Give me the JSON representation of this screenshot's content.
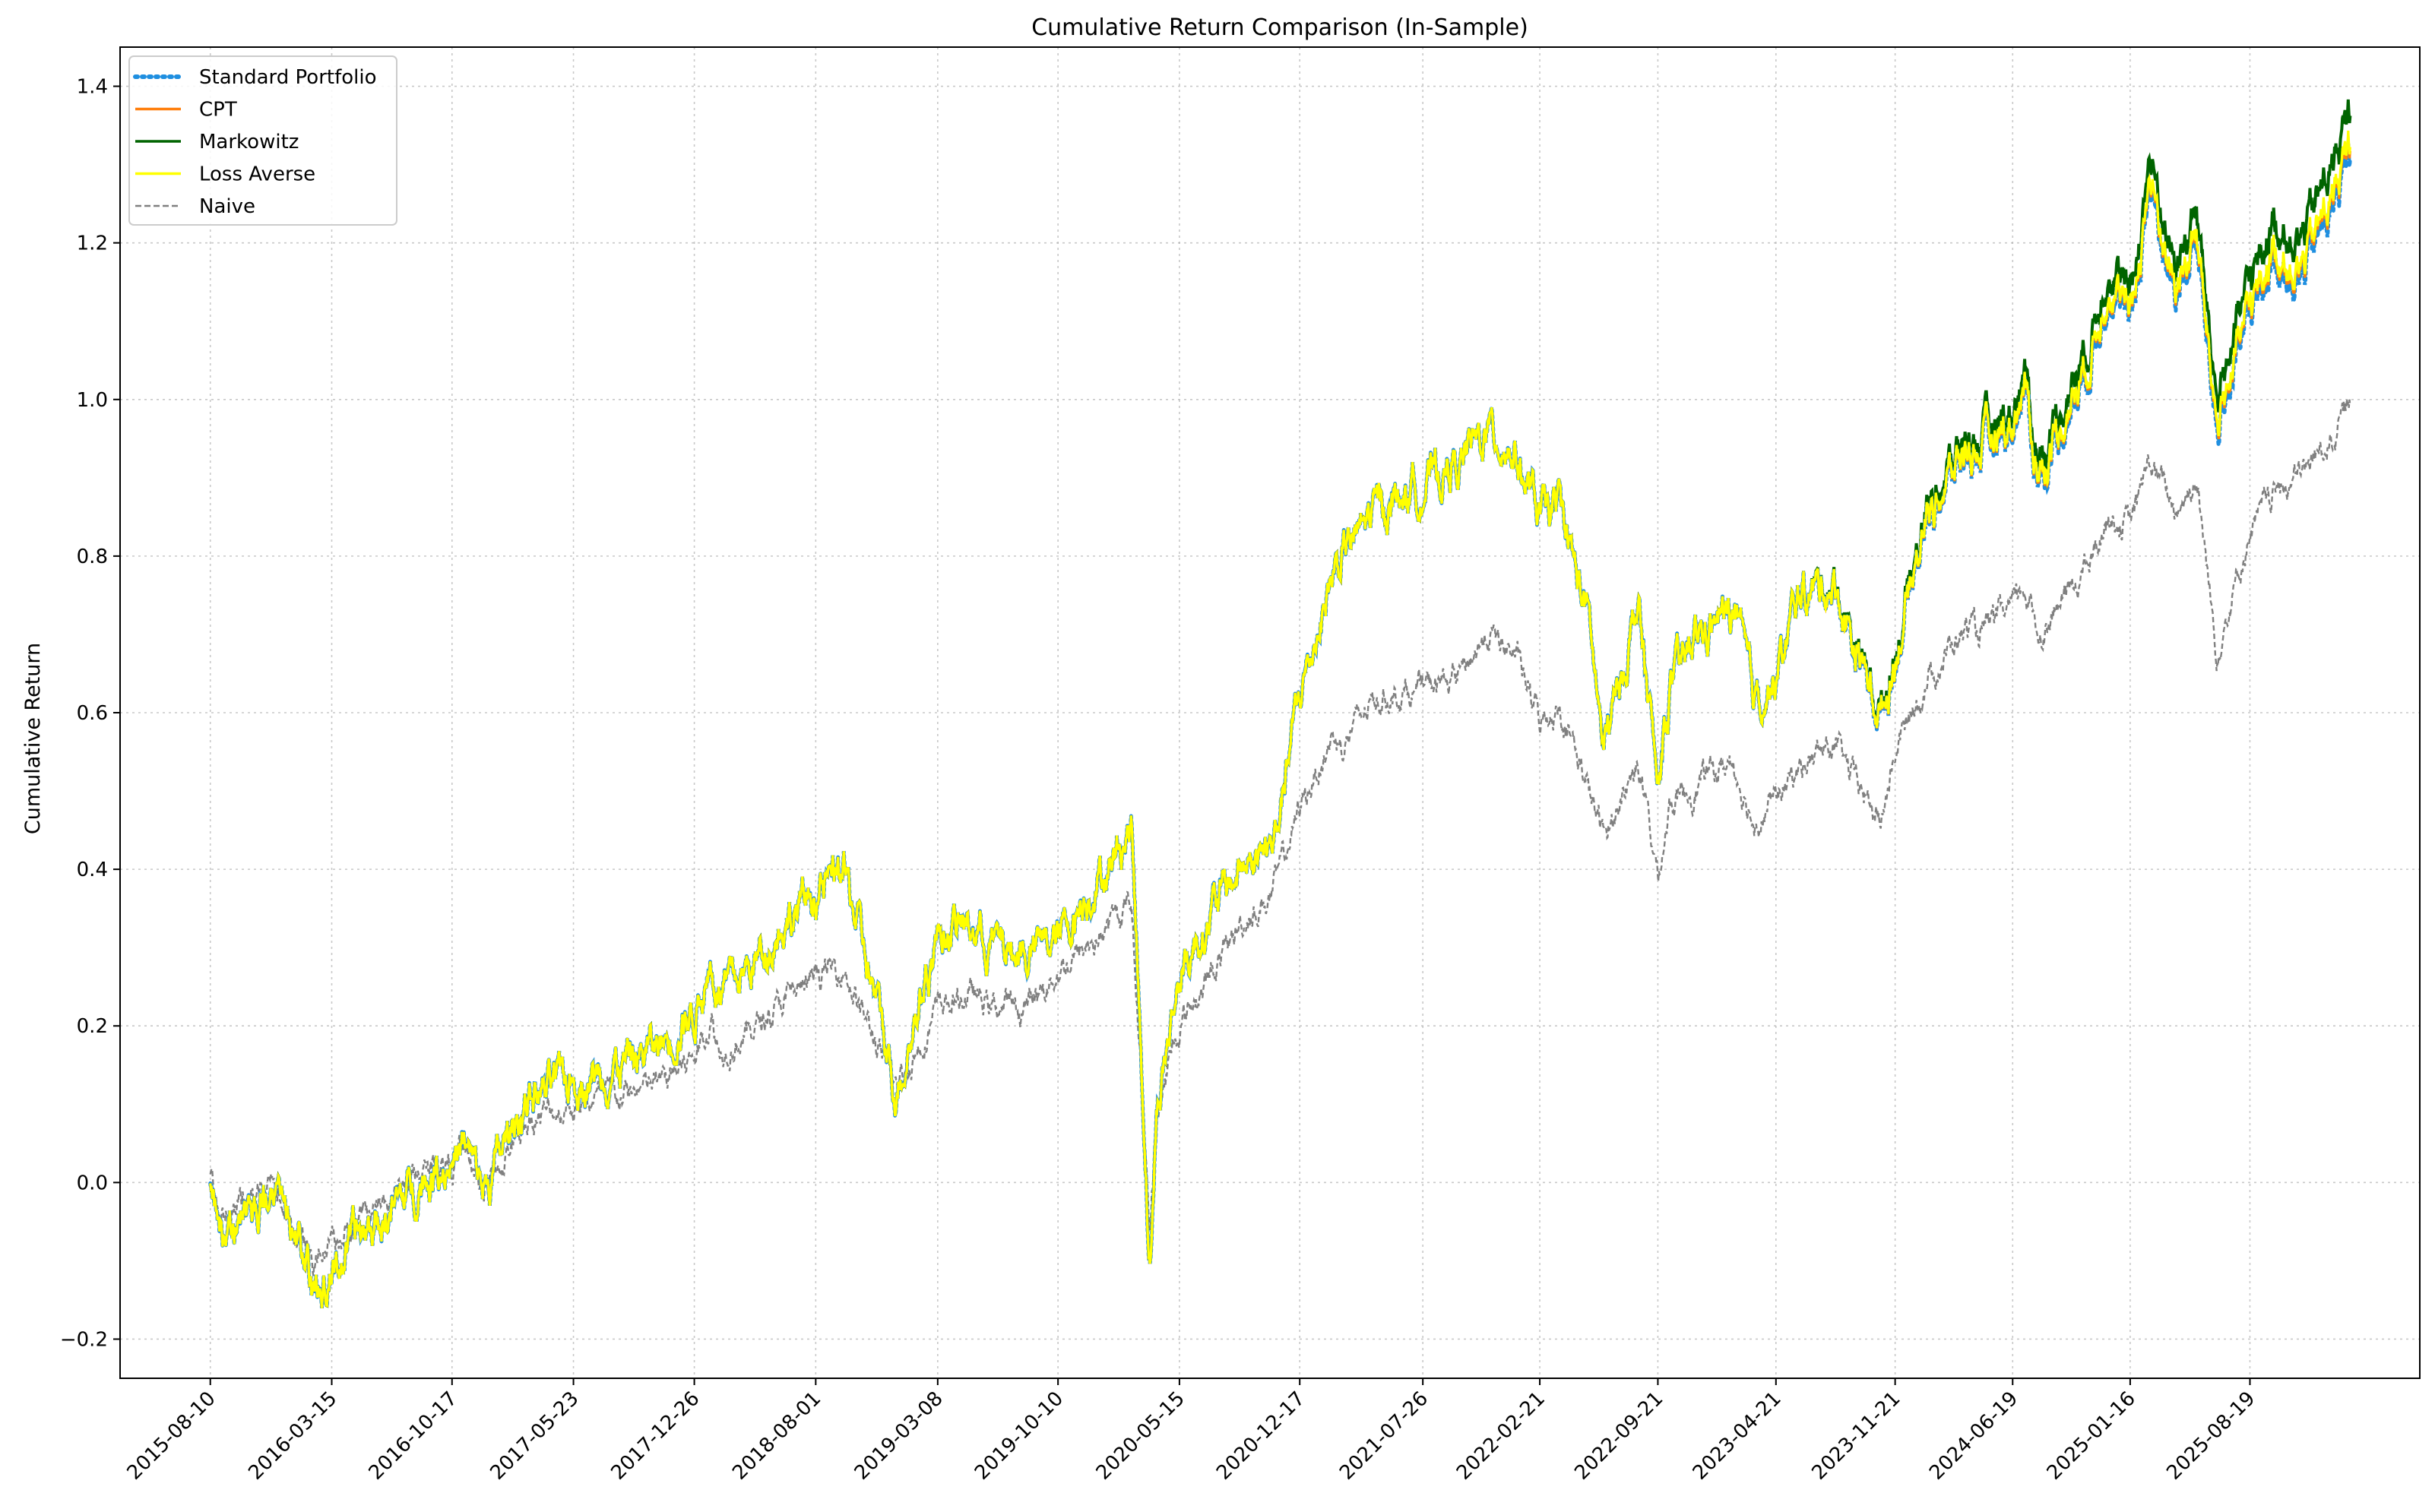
{
  "chart_data": {
    "type": "line",
    "title": "Cumulative Return Comparison (In-Sample)",
    "xlabel": "",
    "ylabel": "Cumulative Return",
    "x_ticks": [
      "2015-08-10",
      "2016-03-15",
      "2016-10-17",
      "2017-05-23",
      "2017-12-26",
      "2018-08-01",
      "2019-03-08",
      "2019-10-10",
      "2020-05-15",
      "2020-12-17",
      "2021-07-26",
      "2022-02-21",
      "2022-09-21",
      "2023-04-21",
      "2023-11-21",
      "2024-06-19",
      "2025-01-16",
      "2025-08-19"
    ],
    "y_ticks": [
      "-0.2",
      "0.0",
      "0.2",
      "0.4",
      "0.6",
      "0.8",
      "1.0",
      "1.2",
      "1.4"
    ],
    "y_tick_values": [
      -0.2,
      0.0,
      0.2,
      0.4,
      0.6,
      0.8,
      1.0,
      1.2,
      1.4
    ],
    "ylim": [
      -0.25,
      1.45
    ],
    "xlim": [
      "2015-03-01",
      "2026-06-20"
    ],
    "grid": true,
    "legend_position": "upper-left",
    "series": [
      {
        "name": "Standard Portfolio",
        "color": "#1f8fe0",
        "style": "dotted"
      },
      {
        "name": "CPT",
        "color": "#ff7f0e",
        "style": "solid"
      },
      {
        "name": "Markowitz",
        "color": "#006400",
        "style": "solid"
      },
      {
        "name": "Loss Averse",
        "color": "#ffff00",
        "style": "solid"
      },
      {
        "name": "Naive",
        "color": "#808080",
        "style": "dashed"
      }
    ],
    "x": [
      "2015-08-10",
      "2015-08-25",
      "2015-10-01",
      "2015-12-01",
      "2016-01-20",
      "2016-02-11",
      "2016-03-15",
      "2016-05-01",
      "2016-06-27",
      "2016-08-15",
      "2016-10-17",
      "2016-11-04",
      "2016-12-15",
      "2017-03-01",
      "2017-05-23",
      "2017-08-15",
      "2017-11-01",
      "2017-12-26",
      "2018-01-26",
      "2018-02-08",
      "2018-04-01",
      "2018-06-01",
      "2018-08-01",
      "2018-09-20",
      "2018-10-15",
      "2018-12-24",
      "2019-03-08",
      "2019-05-01",
      "2019-06-03",
      "2019-08-05",
      "2019-10-10",
      "2019-12-01",
      "2020-01-15",
      "2020-02-19",
      "2020-03-23",
      "2020-04-05",
      "2020-05-15",
      "2020-06-08",
      "2020-07-15",
      "2020-09-02",
      "2020-10-30",
      "2020-12-17",
      "2021-02-15",
      "2021-03-04",
      "2021-05-01",
      "2021-07-26",
      "2021-09-30",
      "2021-11-19",
      "2022-01-03",
      "2022-02-21",
      "2022-03-29",
      "2022-05-20",
      "2022-06-16",
      "2022-08-16",
      "2022-09-21",
      "2022-10-12",
      "2022-12-01",
      "2023-02-02",
      "2023-03-13",
      "2023-04-21",
      "2023-06-01",
      "2023-07-31",
      "2023-10-27",
      "2023-11-21",
      "2024-01-15",
      "2024-03-28",
      "2024-04-19",
      "2024-06-19",
      "2024-07-10",
      "2024-08-05",
      "2024-11-11",
      "2024-12-06",
      "2025-01-16",
      "2025-02-19",
      "2025-04-08",
      "2025-05-15",
      "2025-06-20",
      "2025-08-19",
      "2025-10-01",
      "2025-11-15",
      "2026-01-20",
      "2026-02-15"
    ],
    "values": {
      "Markowitz": [
        0.0,
        -0.07,
        -0.05,
        -0.02,
        -0.08,
        -0.155,
        -0.115,
        -0.07,
        -0.04,
        0.0,
        0.03,
        0.05,
        -0.01,
        0.11,
        0.13,
        0.15,
        0.18,
        0.22,
        0.28,
        0.24,
        0.27,
        0.33,
        0.37,
        0.4,
        0.33,
        0.12,
        0.32,
        0.33,
        0.31,
        0.29,
        0.31,
        0.37,
        0.41,
        0.46,
        -0.1,
        0.1,
        0.26,
        0.3,
        0.35,
        0.4,
        0.43,
        0.62,
        0.78,
        0.8,
        0.86,
        0.89,
        0.92,
        0.96,
        0.94,
        0.85,
        0.86,
        0.72,
        0.55,
        0.74,
        0.5,
        0.63,
        0.7,
        0.73,
        0.62,
        0.64,
        0.75,
        0.77,
        0.6,
        0.68,
        0.86,
        0.95,
        0.95,
        0.99,
        1.03,
        0.92,
        1.09,
        1.18,
        1.12,
        1.31,
        1.17,
        1.24,
        1.0,
        1.15,
        1.23,
        1.2,
        1.31,
        1.37
      ],
      "Naive": [
        0.0,
        -0.05,
        -0.03,
        -0.01,
        -0.07,
        -0.11,
        -0.08,
        -0.05,
        -0.02,
        0.01,
        0.03,
        0.04,
        -0.01,
        0.08,
        0.1,
        0.11,
        0.13,
        0.16,
        0.21,
        0.17,
        0.19,
        0.23,
        0.26,
        0.28,
        0.23,
        0.12,
        0.22,
        0.24,
        0.23,
        0.22,
        0.27,
        0.3,
        0.33,
        0.36,
        -0.06,
        0.09,
        0.2,
        0.23,
        0.27,
        0.33,
        0.37,
        0.48,
        0.57,
        0.56,
        0.62,
        0.63,
        0.65,
        0.7,
        0.68,
        0.59,
        0.61,
        0.5,
        0.44,
        0.54,
        0.39,
        0.48,
        0.51,
        0.54,
        0.46,
        0.49,
        0.53,
        0.56,
        0.46,
        0.55,
        0.64,
        0.71,
        0.7,
        0.73,
        0.76,
        0.7,
        0.8,
        0.85,
        0.84,
        0.92,
        0.86,
        0.9,
        0.68,
        0.83,
        0.88,
        0.9,
        0.96,
        1.0
      ]
    }
  }
}
